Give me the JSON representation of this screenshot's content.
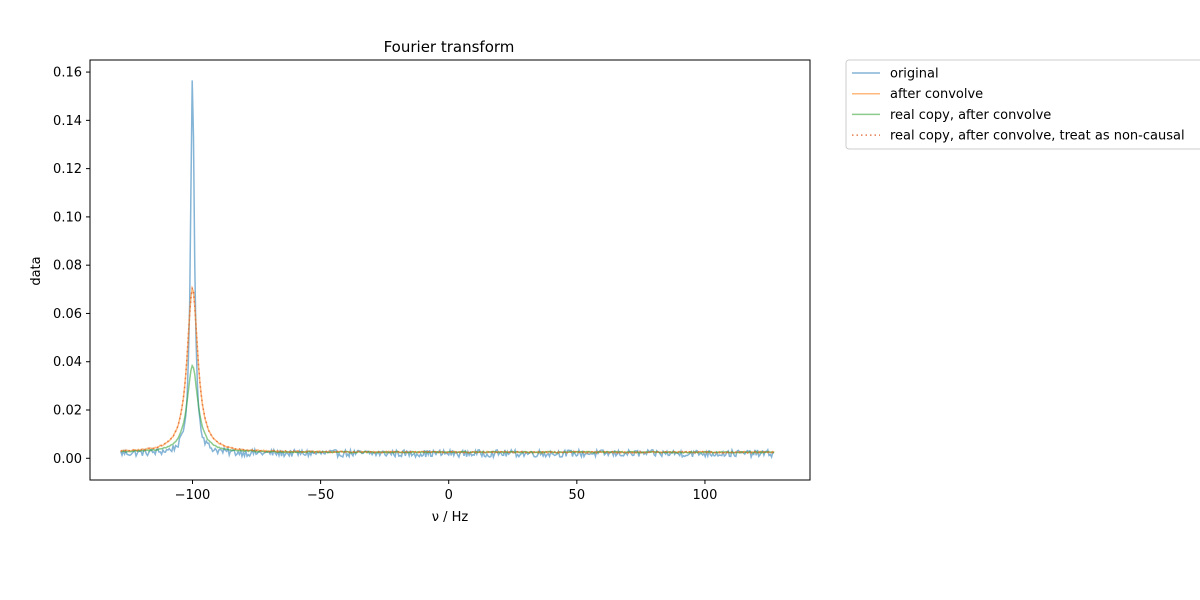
{
  "chart_data": {
    "type": "line",
    "title": "Fourier transform",
    "xlabel": "ν / Hz",
    "ylabel": "data",
    "xlim": [
      -140,
      141
    ],
    "ylim": [
      -0.009,
      0.165
    ],
    "xticks": [
      -100,
      -50,
      0,
      50,
      100
    ],
    "xtick_labels": [
      "−100",
      "−50",
      "0",
      "50",
      "100"
    ],
    "yticks": [
      0.0,
      0.02,
      0.04,
      0.06,
      0.08,
      0.1,
      0.12,
      0.14,
      0.16
    ],
    "ytick_labels": [
      "0.00",
      "0.02",
      "0.04",
      "0.06",
      "0.08",
      "0.10",
      "0.12",
      "0.14",
      "0.16"
    ],
    "grid": false,
    "legend_placement": "outside right, top",
    "x_range": [
      -128,
      127
    ],
    "series": [
      {
        "name": "original",
        "color": "#1f77b4",
        "style": "solid",
        "peak_center": -100,
        "peak_height": 0.157,
        "peak_halfwidth": 0.9,
        "baseline": 0.002,
        "noise": 0.0015
      },
      {
        "name": "after convolve",
        "color": "#ff7f0e",
        "style": "solid",
        "peak_center": -100,
        "peak_height": 0.068,
        "peak_halfwidth": 2.5,
        "baseline": 0.0025,
        "noise": 0.0003
      },
      {
        "name": "real copy, after convolve",
        "color": "#2ca02c",
        "style": "solid",
        "peak_center": -100,
        "peak_height": 0.036,
        "peak_halfwidth": 2.5,
        "baseline": 0.0025,
        "noise": 0.0003
      },
      {
        "name": "real copy, after convolve, treat as non-causal",
        "color": "#e4703a",
        "style": "dotted",
        "peak_center": -100,
        "peak_height": 0.068,
        "peak_halfwidth": 2.5,
        "baseline": 0.0025,
        "noise": 0.0003
      }
    ]
  }
}
